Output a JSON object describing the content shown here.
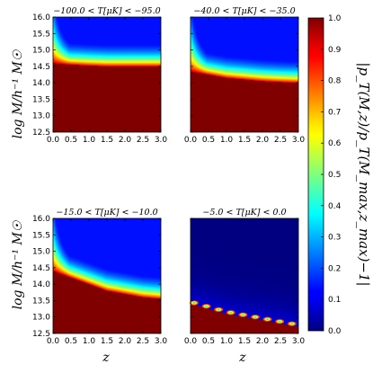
{
  "chart_data": {
    "type": "heatmap",
    "colormap": "jet",
    "grid": false,
    "xlim": [
      0,
      3
    ],
    "ylim": [
      12.5,
      16.0
    ],
    "xticks": [
      "0.0",
      "0.5",
      "1.0",
      "1.5",
      "2.0",
      "2.5",
      "3.0"
    ],
    "yticks": [
      "12.5",
      "13.0",
      "13.5",
      "14.0",
      "14.5",
      "15.0",
      "15.5",
      "16.0"
    ],
    "xlabel": "z",
    "ylabel": "log M/h⁻¹ M☉",
    "colorbar": {
      "label": "|p_T(M,z)/p_T(M_max,z_max)−1|",
      "range": [
        0,
        1
      ],
      "ticks": [
        "0.0",
        "0.1",
        "0.2",
        "0.3",
        "0.4",
        "0.5",
        "0.6",
        "0.7",
        "0.8",
        "0.9",
        "1.0"
      ]
    },
    "panels": [
      {
        "title": "−100.0 < T[μK] < −95.0",
        "boundary_logM": [
          14.6,
          14.55,
          14.52,
          14.5,
          14.5,
          14.5,
          14.5
        ],
        "spots": false
      },
      {
        "title": "−40.0 < T[μK] < −35.0",
        "boundary_logM": [
          14.35,
          14.25,
          14.15,
          14.1,
          14.05,
          14.02,
          14.0
        ],
        "spots": false
      },
      {
        "title": "−15.0 < T[μK] < −10.0",
        "boundary_logM": [
          14.4,
          14.2,
          14.0,
          13.8,
          13.7,
          13.6,
          13.55
        ],
        "spots": false
      },
      {
        "title": "−5.0 < T[μK] < 0.0",
        "boundary_logM": [
          13.4,
          13.25,
          13.1,
          13.0,
          12.9,
          12.8,
          12.7
        ],
        "spots": true
      }
    ]
  }
}
